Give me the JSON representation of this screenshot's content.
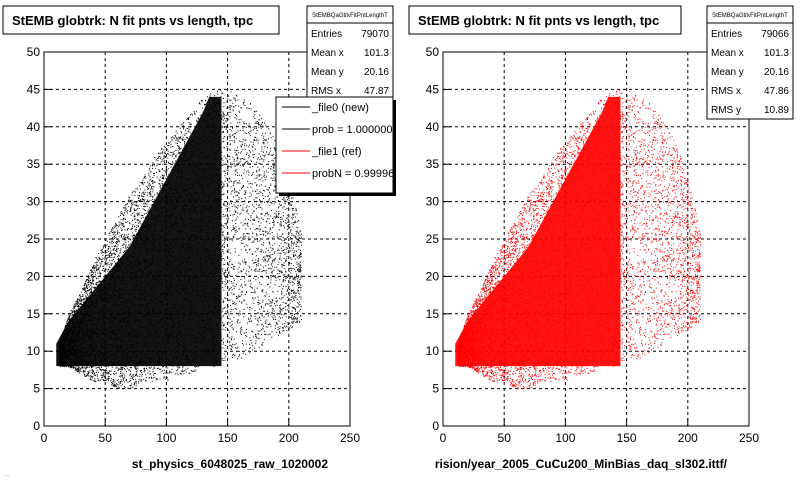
{
  "colors": {
    "series_new": "#000000",
    "series_ref": "#ff0000",
    "grid": "#000000",
    "background": "#ffffff"
  },
  "footer_text": "...",
  "chart_data": [
    {
      "type": "scatter",
      "title": "StEMB globtrk: N fit pnts vs length, tpc",
      "xlabel": "st_physics_6048025_raw_1020002",
      "ylabel": "",
      "xlim": [
        0,
        250
      ],
      "ylim": [
        0,
        50
      ],
      "xticks": [
        "0",
        "50",
        "100",
        "150",
        "200",
        "250"
      ],
      "yticks": [
        "0",
        "5",
        "10",
        "15",
        "20",
        "25",
        "30",
        "35",
        "40",
        "45",
        "50"
      ],
      "grid": true,
      "series_color": "#000000",
      "stats": {
        "header": "StEMBQaGtrkFitPntLengthT",
        "rows": [
          {
            "label": "Entries",
            "value": "79070"
          },
          {
            "label": "Mean x",
            "value": "101.3"
          },
          {
            "label": "Mean y",
            "value": "20.16"
          },
          {
            "label": "RMS x",
            "value": "47.87"
          }
        ]
      },
      "legend": {
        "placement": "top-right",
        "entries": [
          {
            "label": "_file0 (new)",
            "color": "#000000"
          },
          {
            "label": "prob = 1.000000",
            "color": "#000000"
          },
          {
            "label": "_file1 (ref)",
            "color": "#ff0000"
          },
          {
            "label": "probN = 0.99996",
            "color": "#ff0000"
          }
        ]
      },
      "envelope": {
        "x": [
          12,
          20,
          30,
          40,
          50,
          60,
          70,
          80,
          90,
          100,
          110,
          120,
          130,
          140,
          150,
          160,
          170,
          180,
          190,
          200,
          210
        ],
        "ymin": [
          8,
          8,
          7,
          6,
          6,
          5,
          5,
          6,
          6,
          6,
          7,
          7,
          8,
          8,
          9,
          9,
          10,
          11,
          12,
          13,
          14
        ],
        "ymax": [
          11,
          15,
          18,
          22,
          25,
          28,
          31,
          33,
          36,
          38,
          40,
          42,
          44,
          45,
          45,
          44,
          43,
          41,
          38,
          33,
          26
        ]
      },
      "dense_region": {
        "x": [
          10,
          145
        ],
        "y": [
          8,
          44
        ]
      }
    },
    {
      "type": "scatter",
      "title": "StEMB globtrk: N fit pnts vs length, tpc",
      "xlabel": "rision/year_2005_CuCu200_MinBias_daq_sl302.ittf/",
      "ylabel": "",
      "xlim": [
        0,
        250
      ],
      "ylim": [
        0,
        50
      ],
      "xticks": [
        "0",
        "50",
        "100",
        "150",
        "200",
        "250"
      ],
      "yticks": [
        "0",
        "5",
        "10",
        "15",
        "20",
        "25",
        "30",
        "35",
        "40",
        "45",
        "50"
      ],
      "grid": true,
      "series_color": "#ff0000",
      "stats": {
        "header": "StEMBQaGtrkFitPntLengthT",
        "rows": [
          {
            "label": "Entries",
            "value": "79066"
          },
          {
            "label": "Mean x",
            "value": "101.3"
          },
          {
            "label": "Mean y",
            "value": "20.16"
          },
          {
            "label": "RMS x",
            "value": "47.86"
          },
          {
            "label": "RMS y",
            "value": "10.89"
          }
        ]
      },
      "envelope": {
        "x": [
          12,
          20,
          30,
          40,
          50,
          60,
          70,
          80,
          90,
          100,
          110,
          120,
          130,
          140,
          150,
          160,
          170,
          180,
          190,
          200,
          210
        ],
        "ymin": [
          8,
          8,
          7,
          6,
          6,
          5,
          5,
          6,
          6,
          6,
          7,
          7,
          8,
          8,
          9,
          9,
          10,
          11,
          12,
          13,
          14
        ],
        "ymax": [
          11,
          15,
          18,
          22,
          25,
          28,
          31,
          33,
          36,
          38,
          40,
          42,
          44,
          45,
          45,
          44,
          43,
          41,
          38,
          33,
          26
        ]
      },
      "dense_region": {
        "x": [
          10,
          145
        ],
        "y": [
          8,
          44
        ]
      }
    }
  ]
}
